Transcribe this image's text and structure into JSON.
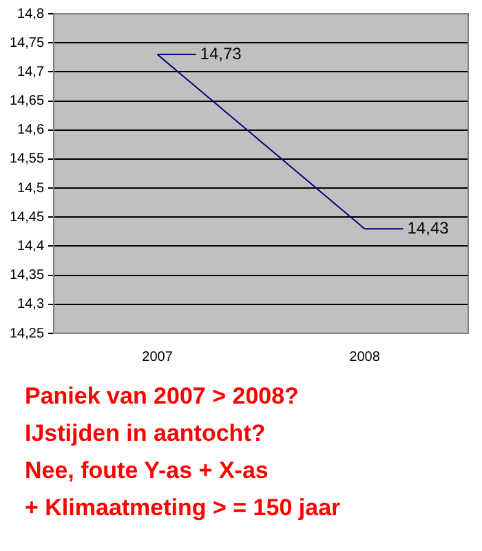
{
  "chart_data": {
    "type": "line",
    "categories": [
      "2007",
      "2008"
    ],
    "series": [
      {
        "color": "#000080",
        "values": [
          14.73,
          14.43
        ],
        "value_labels": [
          "14,73",
          "14,43"
        ]
      }
    ],
    "ylim": [
      14.25,
      14.8
    ],
    "yticks": [
      {
        "value": 14.25,
        "label": "14,25"
      },
      {
        "value": 14.3,
        "label": "14,3"
      },
      {
        "value": 14.35,
        "label": "14,35"
      },
      {
        "value": 14.4,
        "label": "14,4"
      },
      {
        "value": 14.45,
        "label": "14,45"
      },
      {
        "value": 14.5,
        "label": "14,5"
      },
      {
        "value": 14.55,
        "label": "14,55"
      },
      {
        "value": 14.6,
        "label": "14,6"
      },
      {
        "value": 14.65,
        "label": "14,65"
      },
      {
        "value": 14.7,
        "label": "14,7"
      },
      {
        "value": 14.75,
        "label": "14,75"
      },
      {
        "value": 14.8,
        "label": "14,8"
      }
    ],
    "grid": "y",
    "legend": false,
    "marker": "none",
    "line_style": "solid",
    "annotations": [
      "Paniek van 2007 > 2008?",
      "IJstijden in aantocht?",
      "Nee, foute Y-as + X-as",
      "+ Klimaatmeting > = 150 jaar"
    ]
  }
}
